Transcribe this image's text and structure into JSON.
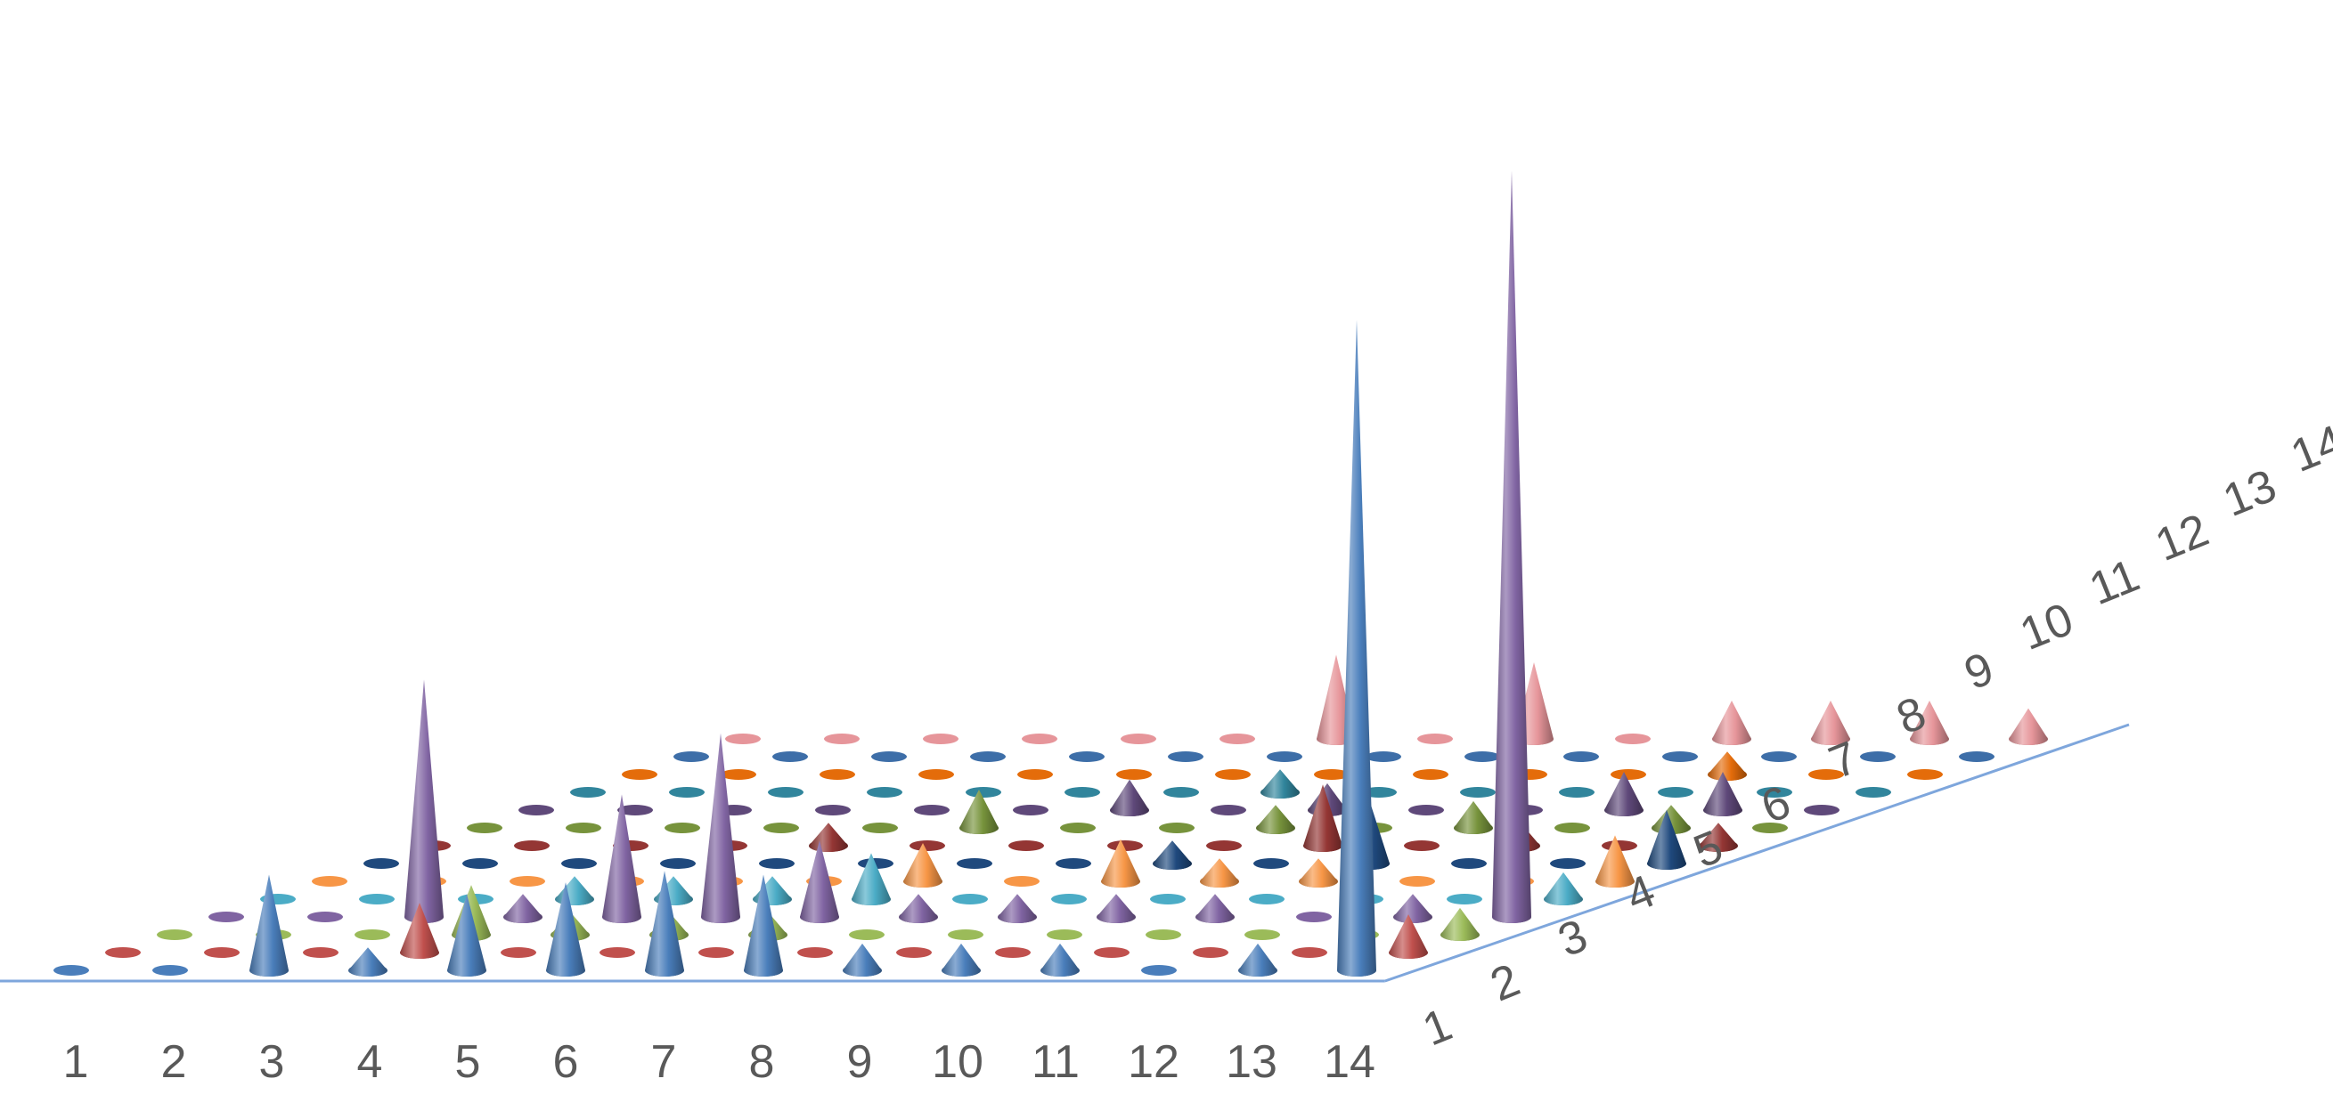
{
  "chart_data": {
    "type": "3d-cone",
    "x_categories": [
      "1",
      "2",
      "3",
      "4",
      "5",
      "6",
      "7",
      "8",
      "9",
      "10",
      "11",
      "12",
      "13",
      "14"
    ],
    "depth_categories": [
      "1",
      "2",
      "3",
      "4",
      "5",
      "6",
      "7",
      "8",
      "9",
      "10",
      "11",
      "12",
      "13",
      "14"
    ],
    "title": "",
    "legend": "none",
    "grid": false,
    "zlim": [
      0,
      22
    ],
    "series_colors": [
      "#4a7ebb",
      "#c0504d",
      "#9bbb59",
      "#8064a2",
      "#4bacc6",
      "#f79646",
      "#1f497d",
      "#943634",
      "#77933c",
      "#5f497a",
      "#31859c",
      "#e46c0a",
      "#3d6ea8",
      "#e6959a"
    ],
    "series": [
      {
        "name": "1",
        "values": [
          0,
          0,
          2.5,
          0.6,
          2.0,
          2.3,
          2.6,
          2.5,
          0.7,
          0.7,
          0.7,
          0,
          0.7,
          17
        ]
      },
      {
        "name": "2",
        "values": [
          0,
          0,
          0,
          1.3,
          0,
          0,
          0,
          0,
          0,
          0,
          0,
          0,
          0,
          1.0
        ]
      },
      {
        "name": "3",
        "values": [
          0,
          0,
          0,
          1.3,
          0.6,
          0.6,
          0.6,
          0,
          0,
          0,
          0,
          0,
          0,
          0.7
        ]
      },
      {
        "name": "4",
        "values": [
          0,
          0,
          6.2,
          0.6,
          3.2,
          4.8,
          2.0,
          0.6,
          0.6,
          0.6,
          0.6,
          0,
          0.6,
          19.5
        ]
      },
      {
        "name": "5",
        "values": [
          0,
          0,
          0,
          0.6,
          0.6,
          0.6,
          1.2,
          0,
          0,
          0,
          0,
          0,
          0,
          0.7
        ]
      },
      {
        "name": "6",
        "values": [
          0,
          0,
          0,
          0,
          0,
          0,
          1.0,
          0,
          1.1,
          0.6,
          0.6,
          0,
          0,
          1.2
        ]
      },
      {
        "name": "7",
        "values": [
          0,
          0,
          0,
          0,
          0,
          0,
          0,
          0,
          0.6,
          0,
          1.6,
          0,
          0,
          1.4
        ]
      },
      {
        "name": "8",
        "values": [
          0,
          0,
          0,
          0,
          0.6,
          0,
          0,
          0,
          0,
          1.6,
          0,
          0.6,
          0,
          0.6
        ]
      },
      {
        "name": "9",
        "values": [
          0,
          0,
          0,
          0,
          0,
          1.0,
          0,
          0,
          0.6,
          0,
          0.7,
          0,
          0.6,
          0
        ]
      },
      {
        "name": "10",
        "values": [
          0,
          0,
          0,
          0,
          0,
          0,
          0.8,
          0,
          0.7,
          0,
          0,
          1.0,
          1.0,
          0
        ]
      },
      {
        "name": "11",
        "values": [
          0,
          0,
          0,
          0,
          0,
          0,
          0,
          0.6,
          0,
          0,
          0,
          0,
          0,
          0
        ]
      },
      {
        "name": "12",
        "values": [
          0,
          0,
          0,
          0,
          0,
          0,
          0,
          0,
          0,
          0,
          0,
          0.6,
          0,
          0
        ]
      },
      {
        "name": "13",
        "values": [
          0,
          0,
          0,
          0,
          0,
          0,
          0,
          0,
          0,
          0,
          0,
          0,
          0,
          0
        ]
      },
      {
        "name": "14",
        "values": [
          0,
          0,
          0,
          0,
          0,
          0,
          2.2,
          0,
          2.0,
          0,
          1.0,
          1.0,
          1.0,
          0.8
        ]
      }
    ]
  }
}
